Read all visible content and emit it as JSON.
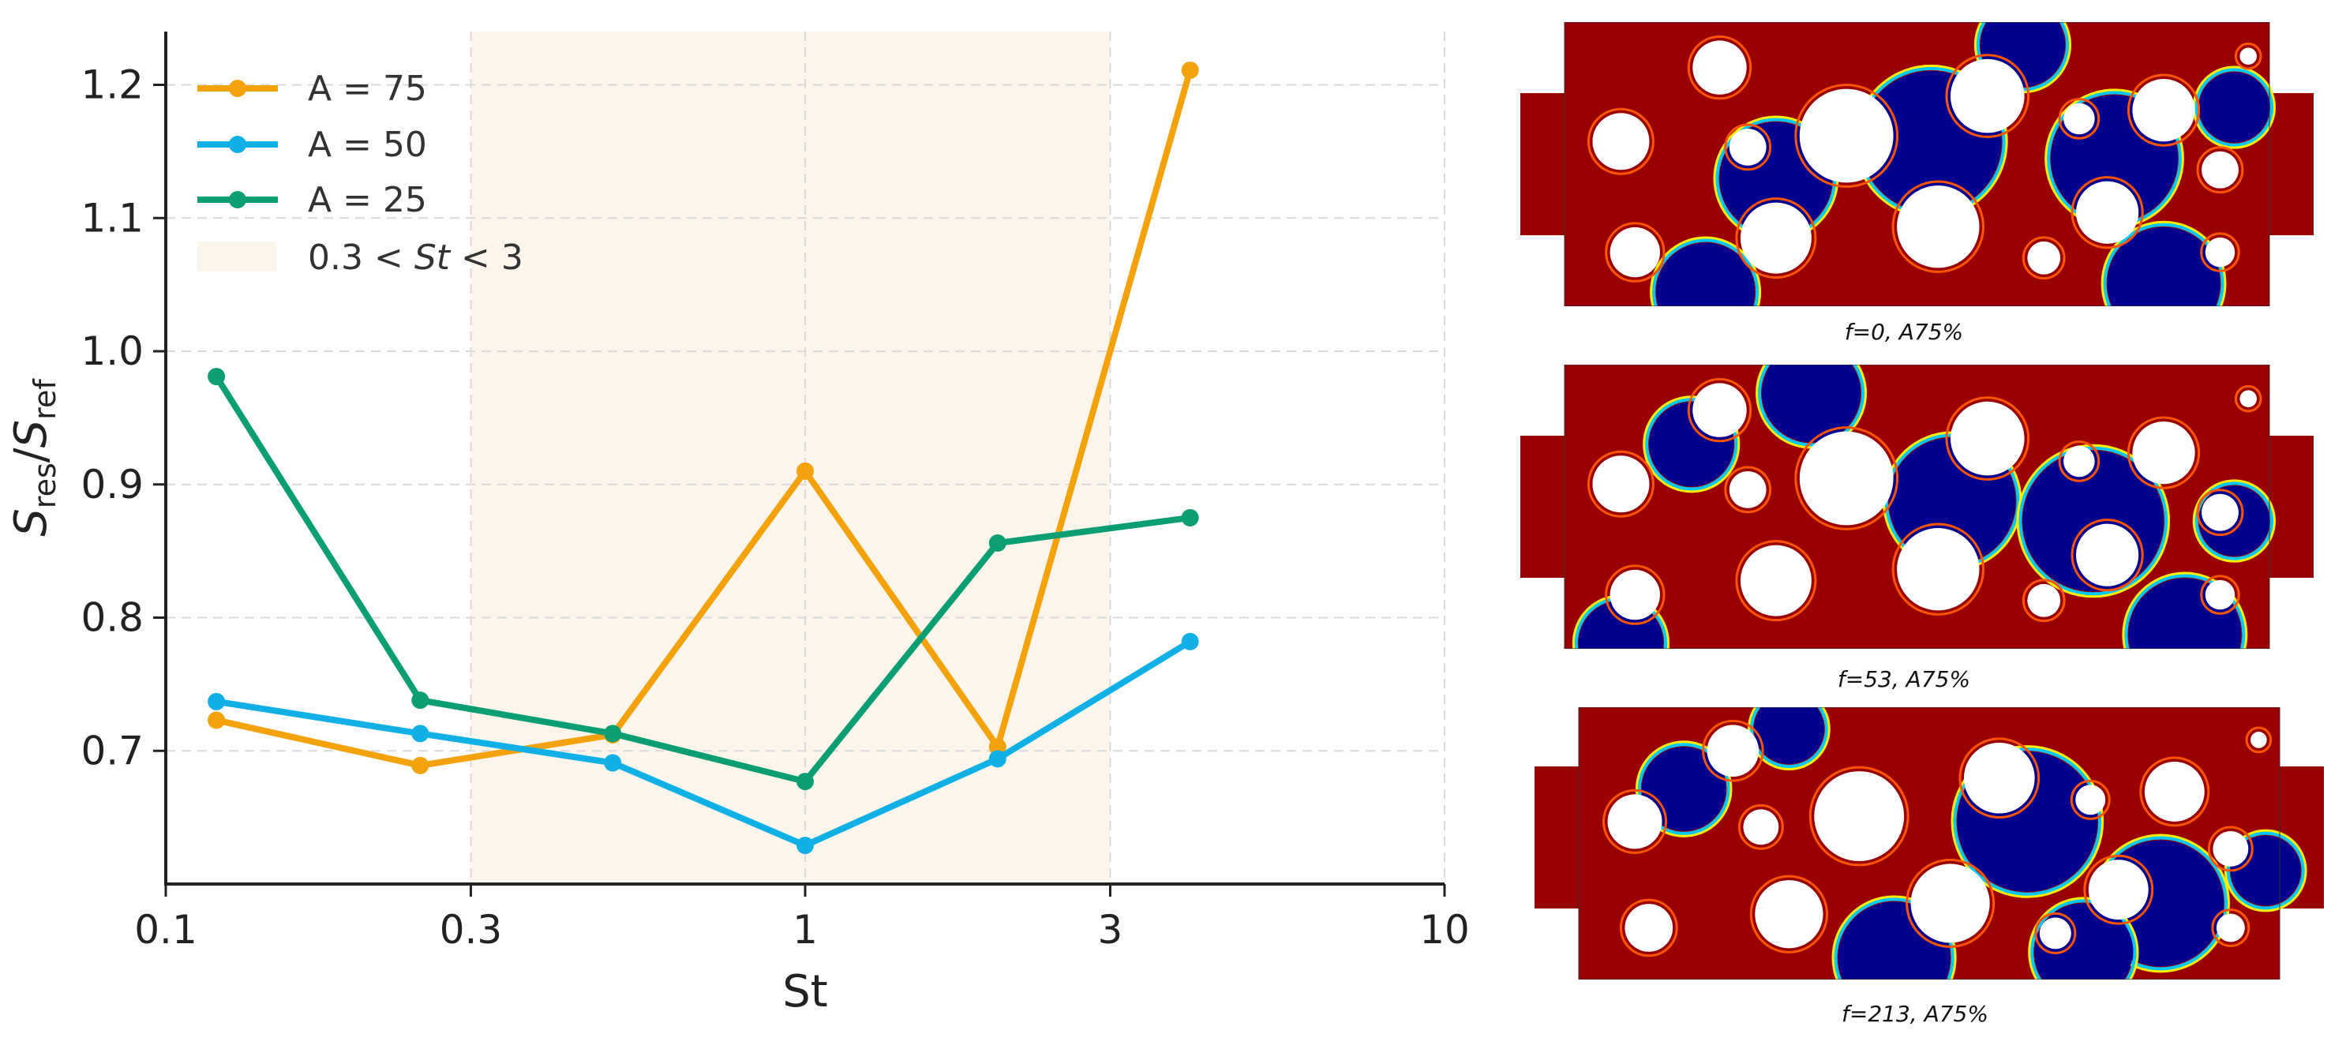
{
  "chart_data": {
    "type": "line",
    "xlabel": "St",
    "ylabel": {
      "base": "S",
      "sub_num": "res",
      "sep": "/",
      "base2": "S",
      "sub_den": "ref"
    },
    "xscale": "log",
    "xlim": [
      0.1,
      10
    ],
    "ylim": [
      0.6,
      1.24
    ],
    "xticks": [
      0.1,
      0.3,
      1,
      3,
      10
    ],
    "xtick_labels": [
      "0.1",
      "0.3",
      "1",
      "3",
      "10"
    ],
    "yticks": [
      0.7,
      0.8,
      0.9,
      1.0,
      1.1,
      1.2
    ],
    "ytick_labels": [
      "0.7",
      "0.8",
      "0.9",
      "1.0",
      "1.1",
      "1.2"
    ],
    "grid": true,
    "legend_position": "top-left",
    "shaded_band": {
      "from": 0.3,
      "to": 3,
      "color": "#fbf5eb",
      "label_parts": [
        "0.3 < ",
        "St",
        " < 3"
      ]
    },
    "series": [
      {
        "name": "A = 75",
        "color": "#f4a20c",
        "x": [
          0.12,
          0.25,
          0.5,
          1.0,
          2.0,
          4.0
        ],
        "y": [
          0.723,
          0.689,
          0.712,
          0.91,
          0.703,
          1.211
        ]
      },
      {
        "name": "A = 50",
        "color": "#10b0e6",
        "x": [
          0.12,
          0.25,
          0.5,
          1.0,
          2.0,
          4.0
        ],
        "y": [
          0.737,
          0.713,
          0.691,
          0.629,
          0.694,
          0.782
        ]
      },
      {
        "name": "A = 25",
        "color": "#0b9e73",
        "x": [
          0.12,
          0.25,
          0.5,
          1.0,
          2.0,
          4.0
        ],
        "y": [
          0.981,
          0.738,
          0.713,
          0.677,
          0.856,
          0.875
        ]
      }
    ]
  },
  "snapshots": [
    {
      "caption": "f=0, A75%"
    },
    {
      "caption": "f=53, A75%"
    },
    {
      "caption": "f=213, A75%"
    }
  ],
  "colors": {
    "fluid_red": "#990000",
    "fluid_blue": "#00008f",
    "axis": "#222222",
    "grid": "#d9d9d9"
  }
}
